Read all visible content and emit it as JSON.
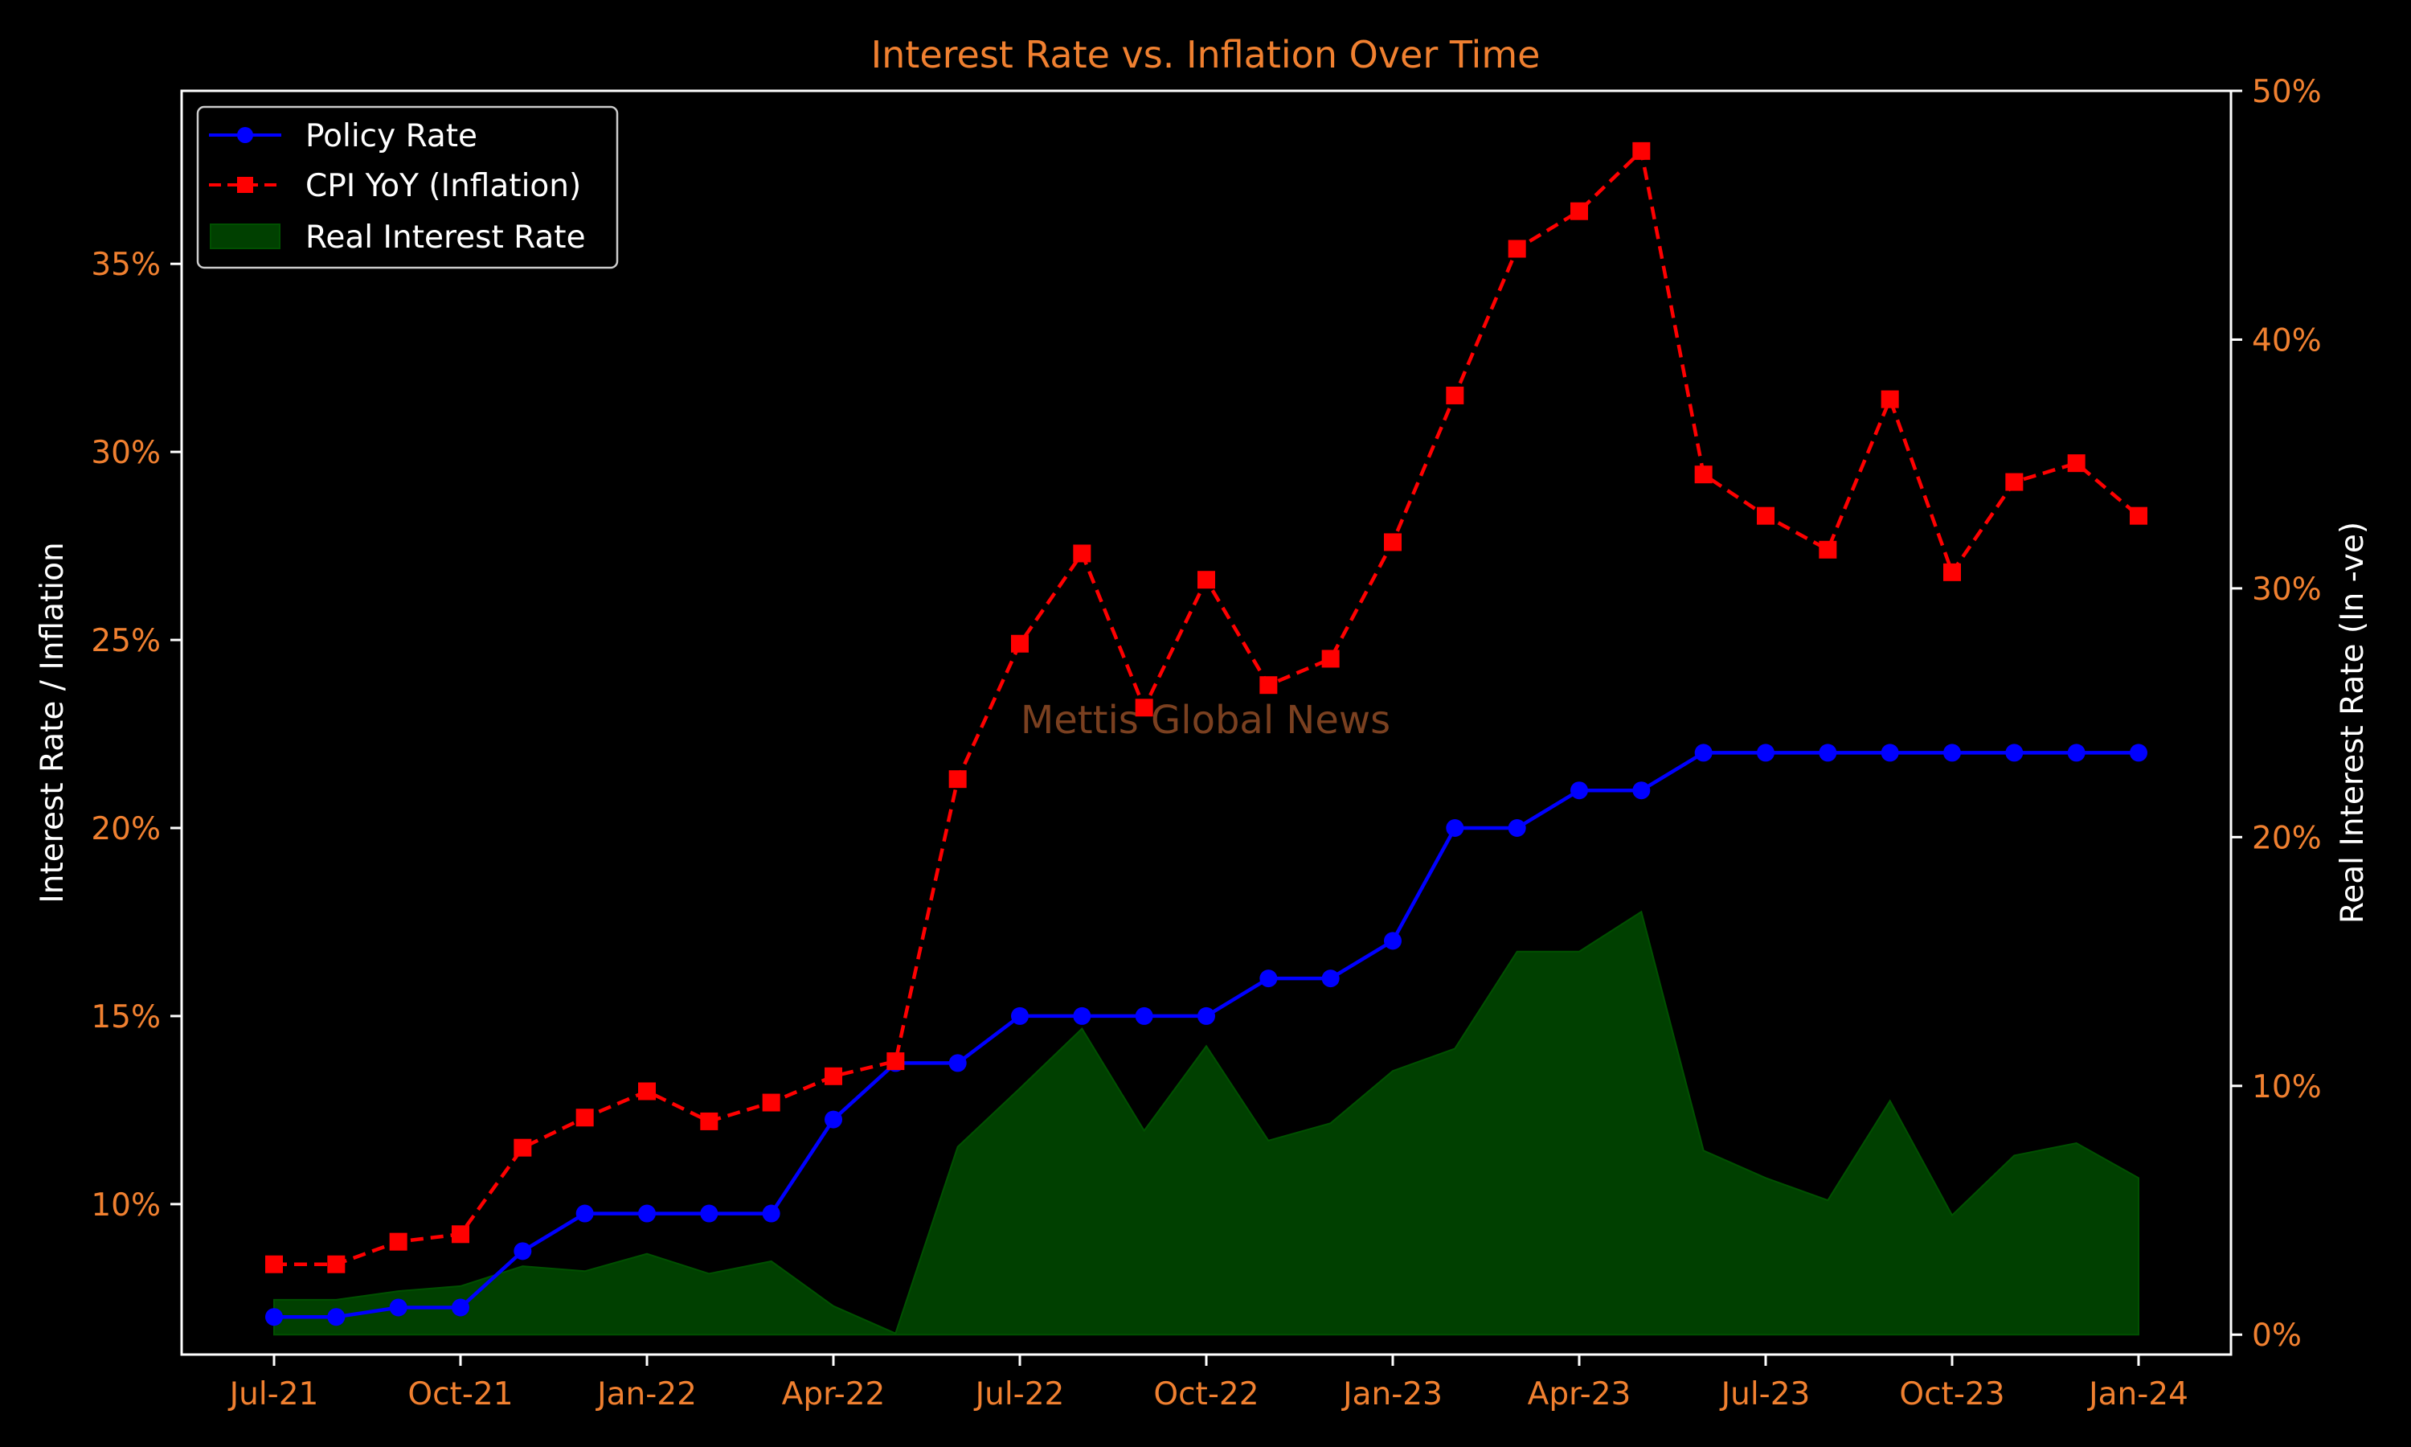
{
  "chart_data": {
    "type": "line",
    "title": "Interest Rate vs. Inflation Over Time",
    "ylabel": "Interest Rate / Inflation",
    "y2label": "Real Interest Rate (In -ve)",
    "watermark": "Mettis Global News",
    "x": [
      "2021-07",
      "2021-08",
      "2021-09",
      "2021-10",
      "2021-11",
      "2021-12",
      "2022-01",
      "2022-02",
      "2022-03",
      "2022-04",
      "2022-05",
      "2022-06",
      "2022-07",
      "2022-08",
      "2022-09",
      "2022-10",
      "2022-11",
      "2022-12",
      "2023-01",
      "2023-02",
      "2023-03",
      "2023-04",
      "2023-05",
      "2023-06",
      "2023-07",
      "2023-08",
      "2023-09",
      "2023-10",
      "2023-11",
      "2023-12",
      "2024-01"
    ],
    "xticks": [
      "Jul-21",
      "Oct-21",
      "Jan-22",
      "Apr-22",
      "Jul-22",
      "Oct-22",
      "Jan-23",
      "Apr-23",
      "Jul-23",
      "Oct-23",
      "Jan-24"
    ],
    "ylim": [
      6.0,
      39.6
    ],
    "yticks": [
      "10%",
      "15%",
      "20%",
      "25%",
      "30%",
      "35%"
    ],
    "y2lim": [
      -0.8,
      50
    ],
    "y2ticks": [
      "0%",
      "10%",
      "20%",
      "30%",
      "40%",
      "50%"
    ],
    "legend": {
      "position": "upper-left",
      "entries": [
        "Policy Rate",
        "CPI YoY (Inflation)",
        "Real Interest Rate"
      ]
    },
    "series": [
      {
        "name": "Policy Rate",
        "axis": "left",
        "style": "solid-circle",
        "color": "#0000ff",
        "values": [
          7.0,
          7.0,
          7.25,
          7.25,
          8.75,
          9.75,
          9.75,
          9.75,
          9.75,
          12.25,
          13.75,
          13.75,
          15.0,
          15.0,
          15.0,
          15.0,
          16.0,
          16.0,
          17.0,
          20.0,
          20.0,
          21.0,
          21.0,
          22.0,
          22.0,
          22.0,
          22.0,
          22.0,
          22.0,
          22.0,
          22.0
        ]
      },
      {
        "name": "CPI YoY (Inflation)",
        "axis": "left",
        "style": "dashed-square",
        "color": "#ff0000",
        "values": [
          8.4,
          8.4,
          9.0,
          9.2,
          11.5,
          12.3,
          13.0,
          12.2,
          12.7,
          13.4,
          13.8,
          21.3,
          24.9,
          27.3,
          23.2,
          26.6,
          23.8,
          24.5,
          27.6,
          31.5,
          35.4,
          36.4,
          38.0,
          29.4,
          28.3,
          27.4,
          31.4,
          26.8,
          29.2,
          29.7,
          28.3
        ]
      },
      {
        "name": "Real Interest Rate",
        "axis": "right",
        "style": "area",
        "color": "#004000",
        "values": [
          1.4,
          1.4,
          1.75,
          1.95,
          2.75,
          2.55,
          3.25,
          2.45,
          2.95,
          1.15,
          0.05,
          7.55,
          9.9,
          12.3,
          8.2,
          11.6,
          7.8,
          8.5,
          10.6,
          11.5,
          15.4,
          15.4,
          17.0,
          7.4,
          6.3,
          5.4,
          9.4,
          4.8,
          7.2,
          7.7,
          6.3
        ]
      }
    ],
    "colors": {
      "background": "#000000",
      "axis": "#ffffff",
      "tick_labels": "#f08030",
      "title": "#f08030",
      "watermark": "#7a4020",
      "area_edge": "#005000"
    }
  }
}
